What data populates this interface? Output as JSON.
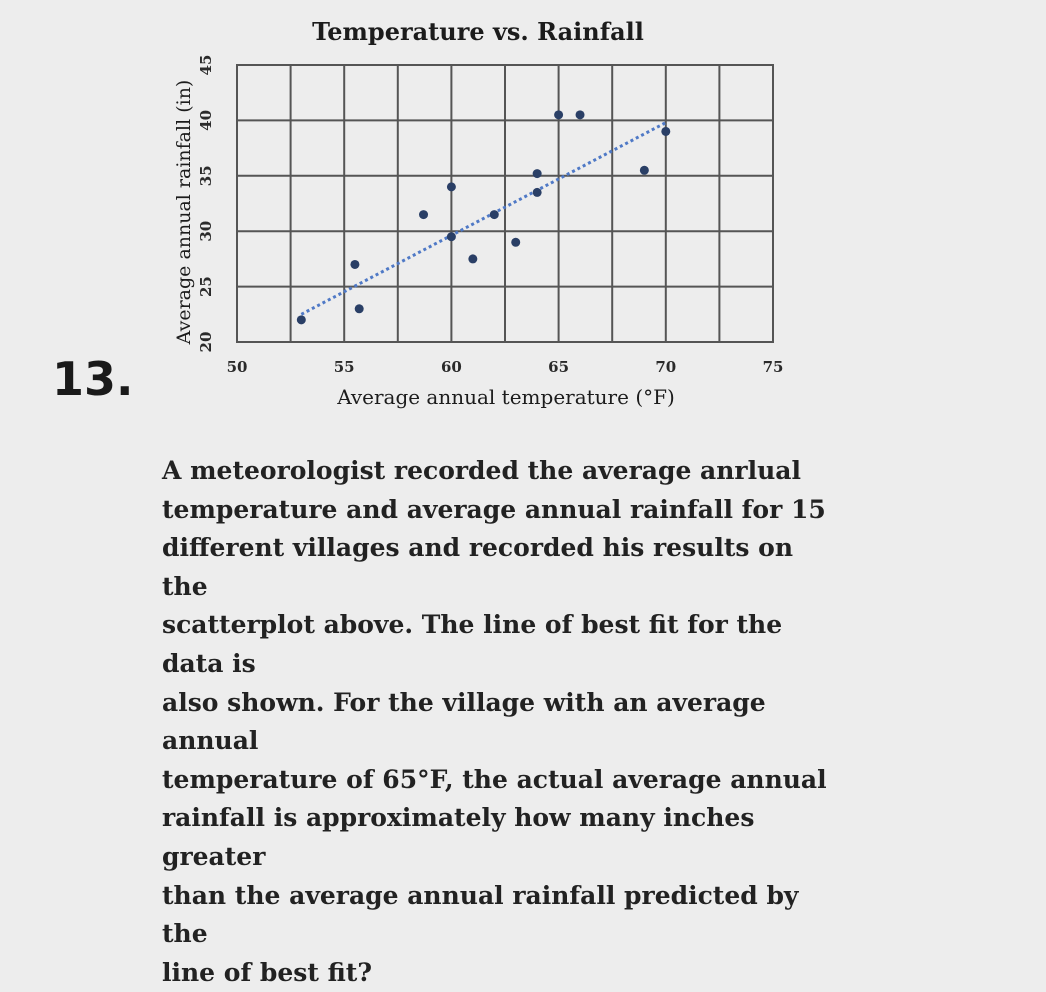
{
  "question": {
    "number": "13.",
    "lines": [
      "A meteorologist recorded the average anrlual",
      "temperature and average annual rainfall for 15",
      "different villages and recorded his results on the",
      "scatterplot above. The line of best fit for the data is",
      "also shown. For the village with an average annual",
      "temperature of 65°F, the actual average annual",
      "rainfall is approximately how many inches greater",
      "than the average annual rainfall predicted by the",
      "line of best fit?"
    ]
  },
  "chart_data": {
    "type": "scatter",
    "title": "Temperature vs. Rainfall",
    "xlabel": "Average annual temperature (°F)",
    "ylabel": "Average annual rainfall (in)",
    "xlim": [
      50,
      75
    ],
    "ylim": [
      20,
      45
    ],
    "xticks": [
      50,
      55,
      60,
      65,
      70,
      75
    ],
    "xtick_labels": [
      "50",
      "55",
      "60",
      "65",
      "70",
      "75"
    ],
    "yticks": [
      20,
      25,
      30,
      35,
      40,
      45
    ],
    "ytick_labels": [
      "20",
      "25",
      "30",
      "35",
      "40",
      "45"
    ],
    "grid": true,
    "points": [
      {
        "x": 53,
        "y": 22
      },
      {
        "x": 55.5,
        "y": 27
      },
      {
        "x": 55.7,
        "y": 23
      },
      {
        "x": 58.7,
        "y": 31.5
      },
      {
        "x": 60,
        "y": 29.5
      },
      {
        "x": 60,
        "y": 34
      },
      {
        "x": 61,
        "y": 27.5
      },
      {
        "x": 62,
        "y": 31.5
      },
      {
        "x": 63,
        "y": 29
      },
      {
        "x": 64,
        "y": 33.5
      },
      {
        "x": 65,
        "y": 40.5
      },
      {
        "x": 66,
        "y": 40.5
      },
      {
        "x": 69,
        "y": 35.5
      },
      {
        "x": 70,
        "y": 39
      },
      {
        "x": 64,
        "y": 35.2
      }
    ],
    "best_fit": {
      "x": [
        53,
        70
      ],
      "y": [
        22.5,
        39.8
      ]
    },
    "colors": {
      "points": "#2a3f66",
      "line": "#4f79c6",
      "grid": "#555555"
    }
  }
}
